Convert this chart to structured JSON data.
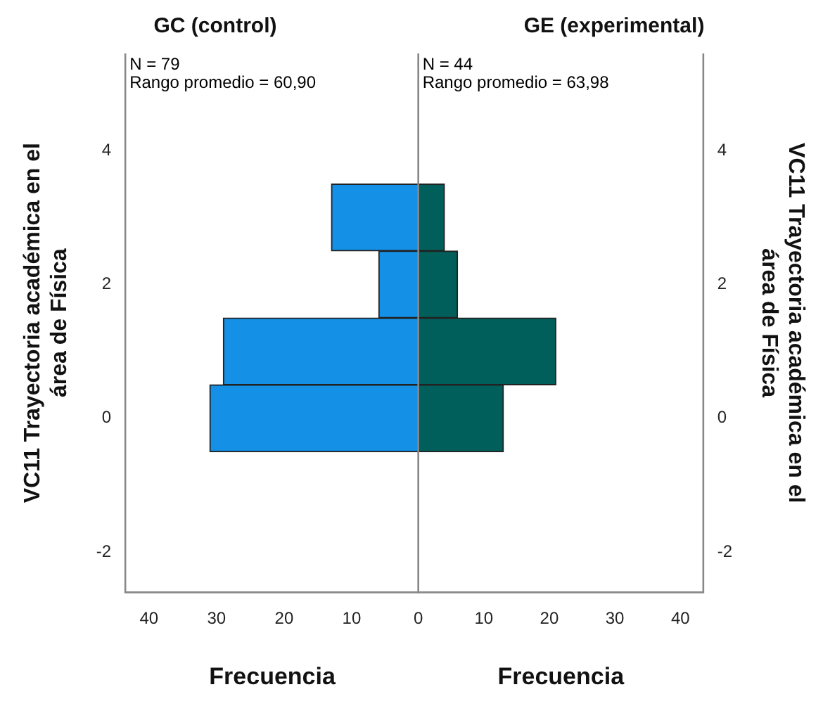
{
  "chart_data": [
    {
      "type": "histogram",
      "orientation": "horizontal",
      "title": "GC (control)",
      "xlabel": "Frecuencia",
      "ylabel": "VC11 Trayectoria académica en el área de Física",
      "bins": [
        -0.5,
        0.5,
        1.5,
        2.5,
        3.5
      ],
      "values": [
        31,
        29,
        6,
        13
      ],
      "color": "#1490e6",
      "xlim": [
        43.5,
        0
      ],
      "xticks": [
        40,
        30,
        20,
        10
      ],
      "ylim": [
        -2.6,
        5.45
      ],
      "yticks": [
        -2,
        0,
        2,
        4
      ],
      "annotations": [
        "N = 79",
        "Rango promedio = 60,90"
      ],
      "grid": false
    },
    {
      "type": "histogram",
      "orientation": "horizontal",
      "title": "GE (experimental)",
      "xlabel": "Frecuencia",
      "ylabel": "VC11 Trayectoria académica en el área de Física",
      "bins": [
        -0.5,
        0.5,
        1.5,
        2.5,
        3.5
      ],
      "values": [
        13,
        21,
        6,
        4
      ],
      "color": "#005f5a",
      "xlim": [
        0,
        43.5
      ],
      "xticks": [
        0,
        10,
        20,
        30,
        40
      ],
      "ylim": [
        -2.6,
        5.45
      ],
      "yticks": [
        -2,
        0,
        2,
        4
      ],
      "annotations": [
        "N = 44",
        "Rango promedio = 63,98"
      ],
      "grid": false
    }
  ]
}
